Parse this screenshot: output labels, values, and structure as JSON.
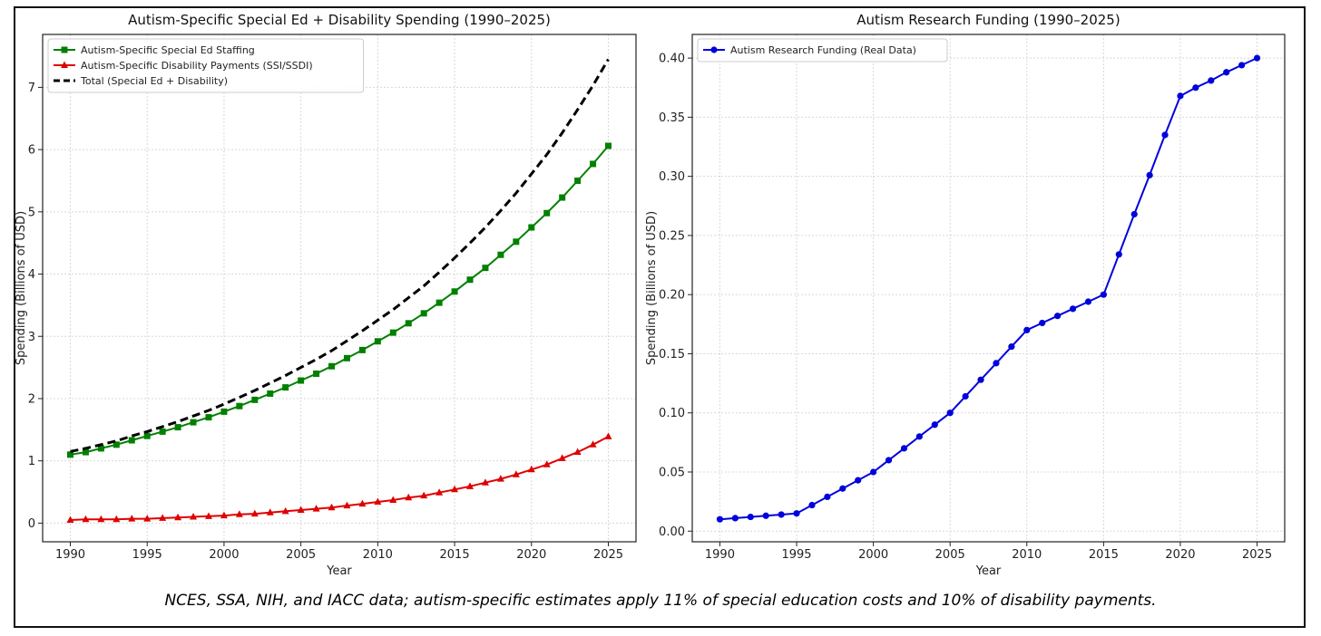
{
  "caption": "NCES, SSA, NIH, and IACC data; autism-specific estimates apply 11% of special education costs and 10% of disability payments.",
  "chart_data": [
    {
      "type": "line",
      "title": "Autism-Specific Special Ed + Disability Spending (1990–2025)",
      "xlabel": "Year",
      "ylabel": "Spending (Billions of USD)",
      "xlim": [
        1988.2,
        2026.8
      ],
      "ylim": [
        -0.3,
        7.85
      ],
      "xticks": [
        1990,
        1995,
        2000,
        2005,
        2010,
        2015,
        2020,
        2025
      ],
      "yticks": [
        0,
        1,
        2,
        3,
        4,
        5,
        6,
        7
      ],
      "grid": true,
      "legend_position": "top-left",
      "x": [
        1990,
        1991,
        1992,
        1993,
        1994,
        1995,
        1996,
        1997,
        1998,
        1999,
        2000,
        2001,
        2002,
        2003,
        2004,
        2005,
        2006,
        2007,
        2008,
        2009,
        2010,
        2011,
        2012,
        2013,
        2014,
        2015,
        2016,
        2017,
        2018,
        2019,
        2020,
        2021,
        2022,
        2023,
        2024,
        2025
      ],
      "series": [
        {
          "name": "Autism-Specific Special Ed Staffing",
          "color": "#008000",
          "marker": "square",
          "values": [
            1.1,
            1.14,
            1.2,
            1.26,
            1.33,
            1.4,
            1.47,
            1.54,
            1.62,
            1.7,
            1.79,
            1.88,
            1.98,
            2.08,
            2.18,
            2.29,
            2.4,
            2.52,
            2.65,
            2.78,
            2.92,
            3.06,
            3.21,
            3.37,
            3.54,
            3.72,
            3.91,
            4.1,
            4.31,
            4.52,
            4.75,
            4.98,
            5.23,
            5.5,
            5.77,
            6.06
          ]
        },
        {
          "name": "Autism-Specific Disability Payments (SSI/SSDI)",
          "color": "#e00000",
          "marker": "triangle",
          "values": [
            0.05,
            0.06,
            0.06,
            0.06,
            0.07,
            0.07,
            0.08,
            0.09,
            0.1,
            0.11,
            0.12,
            0.14,
            0.15,
            0.17,
            0.19,
            0.21,
            0.23,
            0.25,
            0.28,
            0.31,
            0.34,
            0.37,
            0.41,
            0.44,
            0.49,
            0.54,
            0.59,
            0.65,
            0.71,
            0.78,
            0.86,
            0.94,
            1.04,
            1.14,
            1.26,
            1.39
          ]
        },
        {
          "name": "Total (Special Ed + Disability)",
          "color": "#000000",
          "marker": "none",
          "dashed": true,
          "values": [
            1.15,
            1.2,
            1.26,
            1.32,
            1.4,
            1.47,
            1.55,
            1.63,
            1.72,
            1.81,
            1.91,
            2.02,
            2.13,
            2.25,
            2.37,
            2.5,
            2.63,
            2.77,
            2.93,
            3.09,
            3.26,
            3.43,
            3.62,
            3.81,
            4.03,
            4.26,
            4.5,
            4.75,
            5.02,
            5.3,
            5.61,
            5.92,
            6.27,
            6.64,
            7.03,
            7.45
          ]
        }
      ]
    },
    {
      "type": "line",
      "title": "Autism Research Funding (1990–2025)",
      "xlabel": "Year",
      "ylabel": "Spending (Billions of USD)",
      "xlim": [
        1988.2,
        2026.8
      ],
      "ylim": [
        -0.009,
        0.42
      ],
      "xticks": [
        1990,
        1995,
        2000,
        2005,
        2010,
        2015,
        2020,
        2025
      ],
      "yticks": [
        0.0,
        0.05,
        0.1,
        0.15,
        0.2,
        0.25,
        0.3,
        0.35,
        0.4
      ],
      "ytick_labels": [
        "0.00",
        "0.05",
        "0.10",
        "0.15",
        "0.20",
        "0.25",
        "0.30",
        "0.35",
        "0.40"
      ],
      "grid": true,
      "legend_position": "top-left",
      "x": [
        1990,
        1991,
        1992,
        1993,
        1994,
        1995,
        1996,
        1997,
        1998,
        1999,
        2000,
        2001,
        2002,
        2003,
        2004,
        2005,
        2006,
        2007,
        2008,
        2009,
        2010,
        2011,
        2012,
        2013,
        2014,
        2015,
        2016,
        2017,
        2018,
        2019,
        2020,
        2021,
        2022,
        2023,
        2024,
        2025
      ],
      "series": [
        {
          "name": "Autism Research Funding (Real Data)",
          "color": "#0000dd",
          "marker": "circle",
          "values": [
            0.01,
            0.011,
            0.012,
            0.013,
            0.014,
            0.015,
            0.022,
            0.029,
            0.036,
            0.043,
            0.05,
            0.06,
            0.07,
            0.08,
            0.09,
            0.1,
            0.114,
            0.128,
            0.142,
            0.156,
            0.17,
            0.176,
            0.182,
            0.188,
            0.194,
            0.2,
            0.234,
            0.268,
            0.301,
            0.335,
            0.368,
            0.375,
            0.381,
            0.388,
            0.394,
            0.4
          ]
        }
      ]
    }
  ]
}
